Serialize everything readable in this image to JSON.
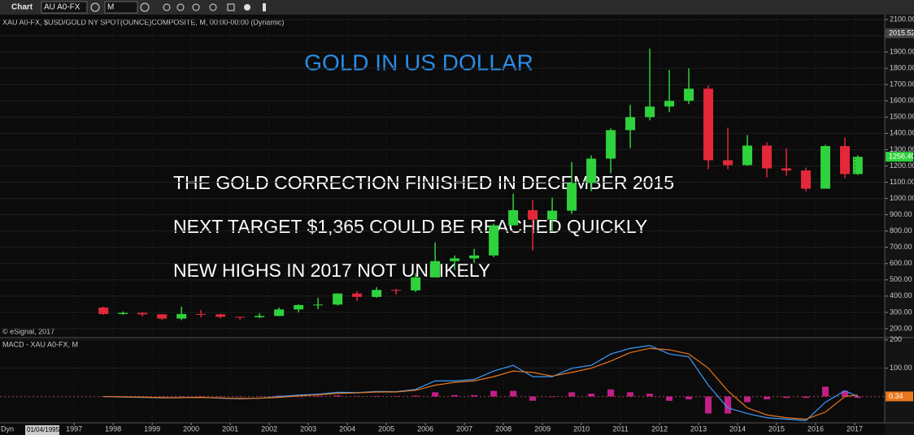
{
  "toolbar": {
    "label": "Chart",
    "symbol": "AU A0-FX",
    "interval": "M"
  },
  "date_label": "01/04/1995",
  "status": "Dyn",
  "chart_data": [
    {
      "type": "candlestick",
      "title": "GOLD IN US DOLLAR",
      "subtitle": "XAU A0-FX, $USD/GOLD NY SPOT(OUNCE)COMPOSITE, M, 00:00-00:00 (Dynamic)",
      "annotations": [
        "THE GOLD CORRECTION FINISHED IN DECEMBER 2015",
        "NEXT TARGET $1,365 COULD BE REACHED QUICKLY",
        "NEW HIGHS IN 2017 NOT UNLIKELY"
      ],
      "source": "© eSignal, 2017",
      "x": [
        1997.75,
        1998.25,
        1998.75,
        1999.25,
        1999.75,
        2000.25,
        2000.75,
        2001.25,
        2001.75,
        2002.25,
        2002.75,
        2003.25,
        2003.75,
        2004.25,
        2004.75,
        2005.25,
        2005.75,
        2006.25,
        2006.75,
        2007.25,
        2007.75,
        2008.25,
        2008.75,
        2009.25,
        2009.75,
        2010.25,
        2010.75,
        2011.25,
        2011.75,
        2012.25,
        2012.75,
        2013.25,
        2013.75,
        2014.25,
        2014.75,
        2015.25,
        2015.75,
        2016.25,
        2016.75,
        2017.08
      ],
      "open": [
        330,
        290,
        297,
        288,
        262,
        290,
        288,
        273,
        270,
        278,
        318,
        345,
        348,
        416,
        395,
        438,
        435,
        515,
        615,
        632,
        650,
        835,
        928,
        870,
        925,
        1095,
        1245,
        1420,
        1500,
        1565,
        1600,
        1675,
        1235,
        1205,
        1325,
        1185,
        1172,
        1060,
        1322,
        1150
      ],
      "high": [
        335,
        305,
        300,
        290,
        335,
        315,
        292,
        275,
        295,
        330,
        350,
        390,
        418,
        430,
        455,
        445,
        540,
        730,
        650,
        690,
        845,
        1030,
        990,
        1005,
        1225,
        1265,
        1430,
        1575,
        1920,
        1790,
        1800,
        1695,
        1435,
        1390,
        1345,
        1308,
        1190,
        1330,
        1375,
        1265
      ],
      "low": [
        285,
        285,
        275,
        255,
        252,
        270,
        263,
        255,
        265,
        277,
        300,
        320,
        342,
        370,
        390,
        410,
        425,
        515,
        560,
        605,
        640,
        835,
        680,
        800,
        905,
        1045,
        1155,
        1310,
        1480,
        1530,
        1580,
        1180,
        1180,
        1200,
        1130,
        1140,
        1045,
        1060,
        1125,
        1145
      ],
      "close": [
        290,
        297,
        288,
        262,
        290,
        288,
        273,
        270,
        278,
        318,
        345,
        348,
        416,
        395,
        438,
        435,
        515,
        615,
        632,
        650,
        835,
        928,
        870,
        925,
        1095,
        1245,
        1420,
        1500,
        1565,
        1600,
        1675,
        1235,
        1205,
        1325,
        1185,
        1172,
        1060,
        1322,
        1150,
        1256
      ],
      "up_color": "#2fd13c",
      "down_color": "#e3283a",
      "xlim": [
        1995.1,
        2017.77
      ],
      "ylim": [
        150,
        2120
      ],
      "yticks": [
        {
          "value": 200,
          "label": "200.00"
        },
        {
          "value": 300,
          "label": "300.00"
        },
        {
          "value": 400,
          "label": "400.00"
        },
        {
          "value": 500,
          "label": "500.00"
        },
        {
          "value": 600,
          "label": "600.00"
        },
        {
          "value": 700,
          "label": "700.00"
        },
        {
          "value": 800,
          "label": "800.00"
        },
        {
          "value": 900,
          "label": "900.00"
        },
        {
          "value": 1000,
          "label": "1000.00"
        },
        {
          "value": 1100,
          "label": "1100.00"
        },
        {
          "value": 1200,
          "label": "1200.00"
        },
        {
          "value": 1300,
          "label": "1300.00"
        },
        {
          "value": 1400,
          "label": "1400.00"
        },
        {
          "value": 1500,
          "label": "1500.00"
        },
        {
          "value": 1600,
          "label": "1600.00"
        },
        {
          "value": 1700,
          "label": "1700.00"
        },
        {
          "value": 1800,
          "label": "1800.00"
        },
        {
          "value": 1900,
          "label": "1900.00"
        },
        {
          "value": 2000,
          "label": "2000.00"
        },
        {
          "value": 2100,
          "label": "2100.00"
        }
      ],
      "price_labels": [
        {
          "value": 2015.52,
          "label": "2015.52"
        },
        {
          "value": 1256.4,
          "label": "1256.40"
        }
      ],
      "grid": true
    },
    {
      "type": "macd",
      "title": "MACD - XAU A0-FX, M",
      "x": [
        1997.75,
        1998.25,
        1998.75,
        1999.25,
        1999.75,
        2000.25,
        2000.75,
        2001.25,
        2001.75,
        2002.25,
        2002.75,
        2003.25,
        2003.75,
        2004.25,
        2004.75,
        2005.25,
        2005.75,
        2006.25,
        2006.75,
        2007.25,
        2007.75,
        2008.25,
        2008.75,
        2009.25,
        2009.75,
        2010.25,
        2010.75,
        2011.25,
        2011.75,
        2012.25,
        2012.75,
        2013.25,
        2013.75,
        2014.25,
        2014.75,
        2015.25,
        2015.75,
        2016.25,
        2016.75,
        2017.08
      ],
      "macd": [
        0,
        -2,
        -3,
        -5,
        -4,
        -3,
        -6,
        -8,
        -6,
        0,
        5,
        8,
        15,
        14,
        18,
        17,
        25,
        55,
        55,
        60,
        90,
        110,
        70,
        70,
        100,
        110,
        150,
        170,
        180,
        150,
        140,
        40,
        -40,
        -60,
        -75,
        -80,
        -85,
        -20,
        20,
        0
      ],
      "signal": [
        0,
        -1,
        -2,
        -4,
        -4,
        -3,
        -5,
        -7,
        -6,
        -3,
        2,
        6,
        11,
        13,
        16,
        16,
        22,
        40,
        50,
        55,
        70,
        90,
        85,
        72,
        85,
        100,
        125,
        155,
        170,
        165,
        150,
        100,
        20,
        -40,
        -65,
        -75,
        -80,
        -55,
        0,
        5
      ],
      "histogram": [
        0,
        -1,
        -1,
        -1,
        0,
        0,
        -1,
        -1,
        0,
        3,
        3,
        2,
        4,
        1,
        2,
        1,
        3,
        15,
        5,
        5,
        20,
        20,
        -15,
        -2,
        15,
        10,
        25,
        15,
        10,
        -15,
        -10,
        -60,
        -60,
        -20,
        -10,
        -5,
        -5,
        35,
        20,
        -5
      ],
      "macd_color": "#3a9cff",
      "signal_color": "#e8771e",
      "histogram_color": "#c21f86",
      "xlim": [
        1995.1,
        2017.77
      ],
      "xticks": [
        1997,
        1998,
        1999,
        2000,
        2001,
        2002,
        2003,
        2004,
        2005,
        2006,
        2007,
        2008,
        2009,
        2010,
        2011,
        2012,
        2013,
        2014,
        2015,
        2016,
        2017
      ],
      "ylim": [
        -90,
        205
      ],
      "yticks": [
        {
          "value": 100,
          "label": "100.00"
        },
        200
      ],
      "price_labels": [
        {
          "value": 0.34,
          "label": "0.34"
        }
      ],
      "grid": true
    }
  ]
}
